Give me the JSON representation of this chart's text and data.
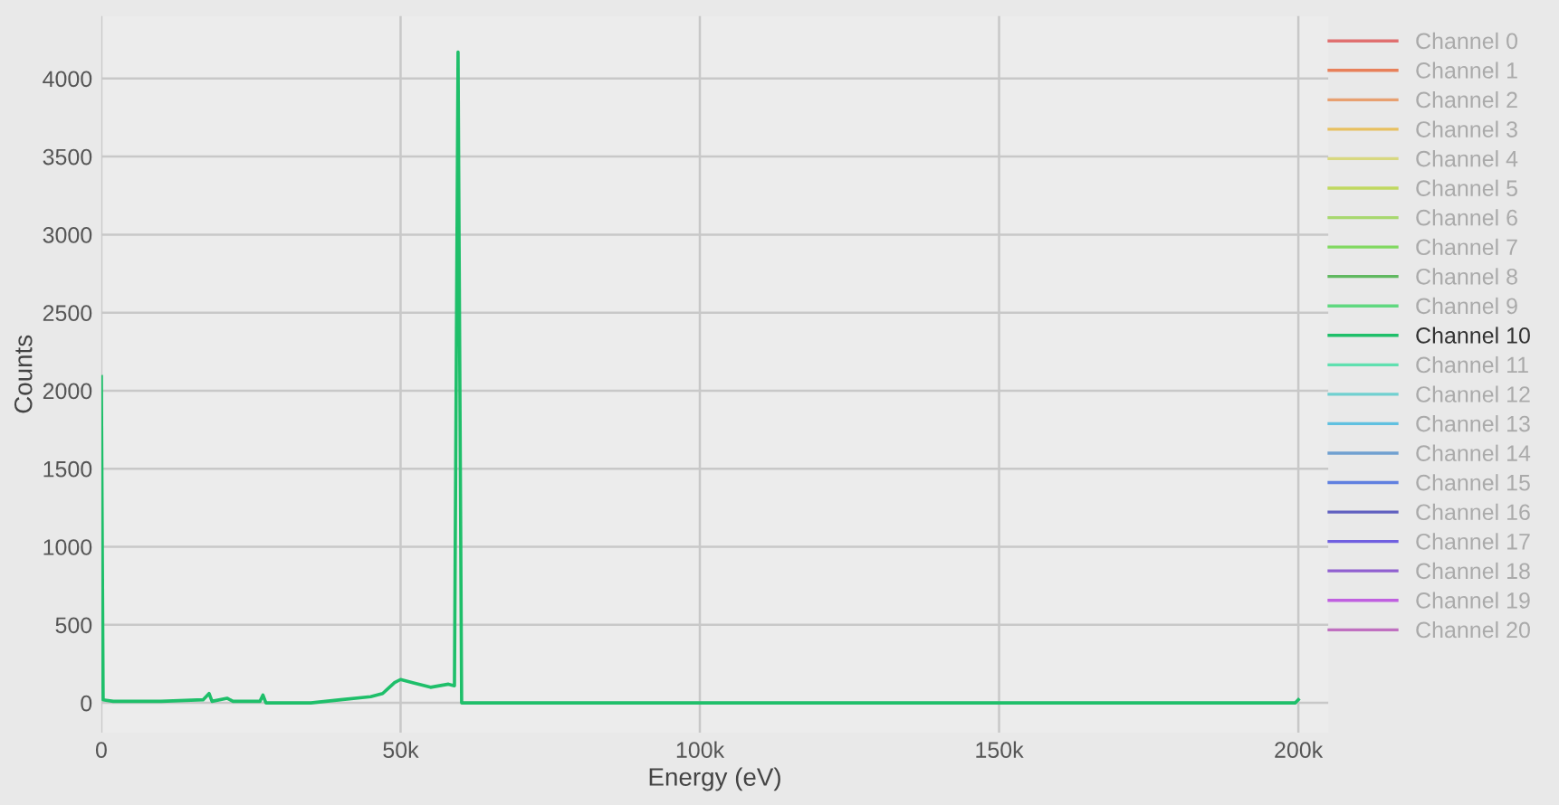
{
  "chart_data": {
    "type": "line",
    "xlabel": "Energy (eV)",
    "ylabel": "Counts",
    "xlim": [
      0,
      205000
    ],
    "ylim": [
      -190,
      4400
    ],
    "xticks": [
      {
        "value": 0,
        "label": "0"
      },
      {
        "value": 50000,
        "label": "50k"
      },
      {
        "value": 100000,
        "label": "100k"
      },
      {
        "value": 150000,
        "label": "150k"
      },
      {
        "value": 200000,
        "label": "200k"
      }
    ],
    "yticks": [
      0,
      500,
      1000,
      1500,
      2000,
      2500,
      3000,
      3500,
      4000
    ],
    "grid": true,
    "legend": "top right",
    "marker": "none",
    "line_style": "solid",
    "series": [
      {
        "name": "Channel 0",
        "color": "#e07070"
      },
      {
        "name": "Channel 1",
        "color": "#e8805a"
      },
      {
        "name": "Channel 2",
        "color": "#e8a070"
      },
      {
        "name": "Channel 3",
        "color": "#e8c060"
      },
      {
        "name": "Channel 4",
        "color": "#d8d880"
      },
      {
        "name": "Channel 5",
        "color": "#c0d860"
      },
      {
        "name": "Channel 6",
        "color": "#a8d870"
      },
      {
        "name": "Channel 7",
        "color": "#80d860"
      },
      {
        "name": "Channel 8",
        "color": "#60b860"
      },
      {
        "name": "Channel 9",
        "color": "#60d880"
      },
      {
        "name": "Channel 10",
        "color": "#1fbf6a",
        "x": [
          0,
          300,
          2000,
          8000,
          10000,
          17000,
          18000,
          18500,
          21000,
          22000,
          26500,
          27000,
          27500,
          35000,
          40000,
          45000,
          47000,
          49000,
          50000,
          52000,
          55000,
          58000,
          59000,
          59600,
          60200,
          62000,
          100000,
          150000,
          199500,
          200000
        ],
        "values": [
          2090,
          20,
          10,
          10,
          10,
          20,
          60,
          10,
          30,
          10,
          10,
          50,
          0,
          0,
          20,
          40,
          60,
          130,
          150,
          130,
          100,
          120,
          110,
          4170,
          0,
          0,
          0,
          0,
          0,
          20
        ]
      },
      {
        "name": "Channel 11",
        "color": "#60e0b0"
      },
      {
        "name": "Channel 12",
        "color": "#70d0d0"
      },
      {
        "name": "Channel 13",
        "color": "#60c0e0"
      },
      {
        "name": "Channel 14",
        "color": "#70a0d0"
      },
      {
        "name": "Channel 15",
        "color": "#6080e0"
      },
      {
        "name": "Channel 16",
        "color": "#6060c0"
      },
      {
        "name": "Channel 17",
        "color": "#7060e0"
      },
      {
        "name": "Channel 18",
        "color": "#9060d0"
      },
      {
        "name": "Channel 19",
        "color": "#c060e0"
      },
      {
        "name": "Channel 20",
        "color": "#c070c0"
      }
    ]
  }
}
